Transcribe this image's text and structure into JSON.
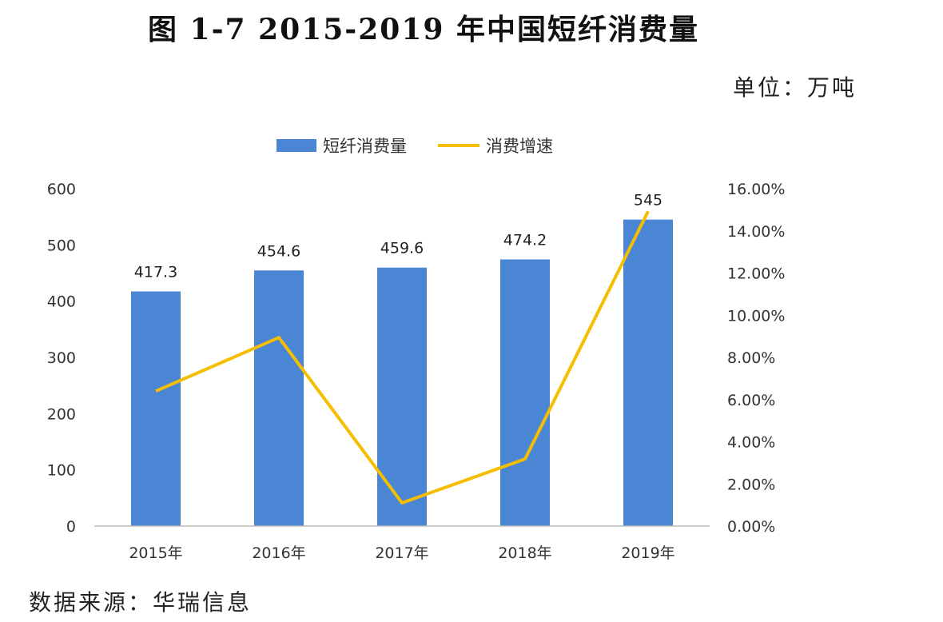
{
  "title": "图 1-7 2015-2019 年中国短纤消费量",
  "unit": "单位：万吨",
  "source": "数据来源：华瑞信息",
  "chart_data": {
    "type": "bar+line",
    "categories": [
      "2015年",
      "2016年",
      "2017年",
      "2018年",
      "2019年"
    ],
    "series": [
      {
        "name": "短纤消费量",
        "type": "bar",
        "axis": "left",
        "values": [
          417.3,
          454.6,
          459.6,
          474.2,
          545
        ],
        "data_labels": [
          "417.3",
          "454.6",
          "459.6",
          "474.2",
          "545"
        ],
        "color": "#4A86D4"
      },
      {
        "name": "消费增速",
        "type": "line",
        "axis": "right",
        "values": [
          6.4,
          8.94,
          1.1,
          3.18,
          14.93
        ],
        "color": "#F5BE00"
      }
    ],
    "left_axis": {
      "ylim": [
        0,
        600
      ],
      "ticks": [
        "0",
        "100",
        "200",
        "300",
        "400",
        "500",
        "600"
      ]
    },
    "right_axis": {
      "ylim": [
        0,
        16
      ],
      "ticks": [
        "0.00%",
        "2.00%",
        "4.00%",
        "6.00%",
        "8.00%",
        "10.00%",
        "12.00%",
        "14.00%",
        "16.00%"
      ]
    },
    "legend": "top",
    "grid": false
  }
}
